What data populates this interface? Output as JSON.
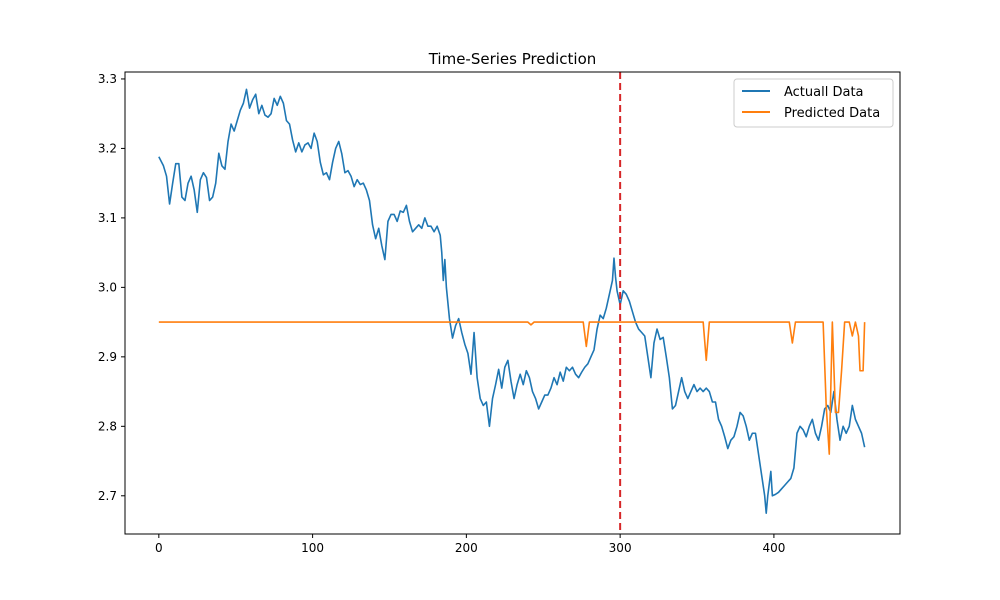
{
  "chart_data": {
    "type": "line",
    "title": "Time-Series Prediction",
    "xlabel": "",
    "ylabel": "",
    "xlim": [
      -22,
      482
    ],
    "ylim": [
      2.645,
      3.31
    ],
    "x_ticks": [
      0,
      100,
      200,
      300,
      400
    ],
    "y_ticks": [
      2.7,
      2.8,
      2.9,
      3.0,
      3.1,
      3.2,
      3.3
    ],
    "grid": false,
    "legend_position": "top-right",
    "vertical_line": {
      "x": 300,
      "color": "#d62728",
      "style": "dashed"
    },
    "series": [
      {
        "name": "Actuall Data",
        "color": "#1f77b4",
        "points": [
          [
            0,
            3.188
          ],
          [
            3,
            3.175
          ],
          [
            5,
            3.16
          ],
          [
            7,
            3.12
          ],
          [
            9,
            3.15
          ],
          [
            11,
            3.178
          ],
          [
            13,
            3.178
          ],
          [
            15,
            3.13
          ],
          [
            17,
            3.125
          ],
          [
            19,
            3.15
          ],
          [
            21,
            3.16
          ],
          [
            23,
            3.14
          ],
          [
            25,
            3.108
          ],
          [
            27,
            3.155
          ],
          [
            29,
            3.165
          ],
          [
            31,
            3.158
          ],
          [
            33,
            3.125
          ],
          [
            35,
            3.13
          ],
          [
            37,
            3.15
          ],
          [
            39,
            3.193
          ],
          [
            41,
            3.175
          ],
          [
            43,
            3.17
          ],
          [
            45,
            3.21
          ],
          [
            47,
            3.235
          ],
          [
            49,
            3.225
          ],
          [
            51,
            3.24
          ],
          [
            53,
            3.255
          ],
          [
            55,
            3.265
          ],
          [
            57,
            3.285
          ],
          [
            59,
            3.258
          ],
          [
            61,
            3.27
          ],
          [
            63,
            3.278
          ],
          [
            65,
            3.25
          ],
          [
            67,
            3.262
          ],
          [
            69,
            3.248
          ],
          [
            71,
            3.245
          ],
          [
            73,
            3.25
          ],
          [
            75,
            3.272
          ],
          [
            77,
            3.262
          ],
          [
            79,
            3.275
          ],
          [
            81,
            3.265
          ],
          [
            83,
            3.24
          ],
          [
            85,
            3.235
          ],
          [
            87,
            3.212
          ],
          [
            89,
            3.195
          ],
          [
            91,
            3.208
          ],
          [
            93,
            3.195
          ],
          [
            95,
            3.205
          ],
          [
            97,
            3.208
          ],
          [
            99,
            3.2
          ],
          [
            101,
            3.222
          ],
          [
            103,
            3.21
          ],
          [
            105,
            3.18
          ],
          [
            107,
            3.162
          ],
          [
            109,
            3.165
          ],
          [
            111,
            3.155
          ],
          [
            113,
            3.18
          ],
          [
            115,
            3.2
          ],
          [
            117,
            3.21
          ],
          [
            119,
            3.192
          ],
          [
            121,
            3.165
          ],
          [
            123,
            3.168
          ],
          [
            125,
            3.16
          ],
          [
            127,
            3.145
          ],
          [
            129,
            3.155
          ],
          [
            131,
            3.148
          ],
          [
            133,
            3.15
          ],
          [
            135,
            3.14
          ],
          [
            137,
            3.125
          ],
          [
            139,
            3.09
          ],
          [
            141,
            3.07
          ],
          [
            143,
            3.085
          ],
          [
            145,
            3.06
          ],
          [
            147,
            3.04
          ],
          [
            149,
            3.095
          ],
          [
            151,
            3.105
          ],
          [
            153,
            3.105
          ],
          [
            155,
            3.095
          ],
          [
            157,
            3.11
          ],
          [
            159,
            3.108
          ],
          [
            161,
            3.118
          ],
          [
            163,
            3.095
          ],
          [
            165,
            3.08
          ],
          [
            167,
            3.085
          ],
          [
            169,
            3.09
          ],
          [
            171,
            3.085
          ],
          [
            173,
            3.1
          ],
          [
            175,
            3.088
          ],
          [
            177,
            3.088
          ],
          [
            179,
            3.08
          ],
          [
            181,
            3.088
          ],
          [
            183,
            3.075
          ],
          [
            184,
            3.05
          ],
          [
            185,
            3.01
          ],
          [
            186,
            3.04
          ],
          [
            187,
            3.0
          ],
          [
            189,
            2.955
          ],
          [
            191,
            2.927
          ],
          [
            193,
            2.945
          ],
          [
            195,
            2.955
          ],
          [
            197,
            2.935
          ],
          [
            199,
            2.918
          ],
          [
            201,
            2.905
          ],
          [
            203,
            2.875
          ],
          [
            205,
            2.935
          ],
          [
            207,
            2.87
          ],
          [
            209,
            2.84
          ],
          [
            211,
            2.83
          ],
          [
            213,
            2.835
          ],
          [
            215,
            2.8
          ],
          [
            217,
            2.84
          ],
          [
            219,
            2.86
          ],
          [
            221,
            2.882
          ],
          [
            223,
            2.855
          ],
          [
            225,
            2.885
          ],
          [
            227,
            2.895
          ],
          [
            229,
            2.865
          ],
          [
            231,
            2.84
          ],
          [
            233,
            2.86
          ],
          [
            235,
            2.875
          ],
          [
            237,
            2.86
          ],
          [
            239,
            2.88
          ],
          [
            241,
            2.87
          ],
          [
            243,
            2.85
          ],
          [
            245,
            2.84
          ],
          [
            247,
            2.825
          ],
          [
            249,
            2.835
          ],
          [
            251,
            2.845
          ],
          [
            253,
            2.845
          ],
          [
            255,
            2.855
          ],
          [
            257,
            2.87
          ],
          [
            259,
            2.86
          ],
          [
            261,
            2.878
          ],
          [
            263,
            2.865
          ],
          [
            265,
            2.885
          ],
          [
            267,
            2.88
          ],
          [
            269,
            2.885
          ],
          [
            271,
            2.875
          ],
          [
            273,
            2.87
          ],
          [
            275,
            2.878
          ],
          [
            277,
            2.885
          ],
          [
            279,
            2.89
          ],
          [
            281,
            2.9
          ],
          [
            283,
            2.91
          ],
          [
            285,
            2.94
          ],
          [
            287,
            2.96
          ],
          [
            289,
            2.955
          ],
          [
            291,
            2.97
          ],
          [
            293,
            2.99
          ],
          [
            295,
            3.01
          ],
          [
            296,
            3.042
          ],
          [
            297,
            3.015
          ],
          [
            298,
            2.995
          ],
          [
            300,
            2.975
          ],
          [
            302,
            2.995
          ],
          [
            304,
            2.99
          ],
          [
            306,
            2.98
          ],
          [
            308,
            2.965
          ],
          [
            310,
            2.95
          ],
          [
            312,
            2.94
          ],
          [
            314,
            2.935
          ],
          [
            316,
            2.93
          ],
          [
            318,
            2.9
          ],
          [
            320,
            2.87
          ],
          [
            322,
            2.92
          ],
          [
            324,
            2.94
          ],
          [
            326,
            2.925
          ],
          [
            328,
            2.928
          ],
          [
            330,
            2.9
          ],
          [
            332,
            2.87
          ],
          [
            334,
            2.825
          ],
          [
            336,
            2.83
          ],
          [
            338,
            2.85
          ],
          [
            340,
            2.87
          ],
          [
            342,
            2.85
          ],
          [
            344,
            2.84
          ],
          [
            346,
            2.85
          ],
          [
            348,
            2.86
          ],
          [
            350,
            2.85
          ],
          [
            352,
            2.855
          ],
          [
            354,
            2.85
          ],
          [
            356,
            2.855
          ],
          [
            358,
            2.85
          ],
          [
            360,
            2.835
          ],
          [
            362,
            2.835
          ],
          [
            364,
            2.81
          ],
          [
            366,
            2.8
          ],
          [
            368,
            2.785
          ],
          [
            370,
            2.768
          ],
          [
            372,
            2.78
          ],
          [
            374,
            2.785
          ],
          [
            376,
            2.8
          ],
          [
            378,
            2.82
          ],
          [
            380,
            2.815
          ],
          [
            382,
            2.8
          ],
          [
            384,
            2.78
          ],
          [
            386,
            2.79
          ],
          [
            388,
            2.79
          ],
          [
            390,
            2.76
          ],
          [
            392,
            2.73
          ],
          [
            394,
            2.7
          ],
          [
            395,
            2.675
          ],
          [
            396,
            2.7
          ],
          [
            398,
            2.735
          ],
          [
            399,
            2.7
          ],
          [
            401,
            2.702
          ],
          [
            403,
            2.705
          ],
          [
            405,
            2.71
          ],
          [
            407,
            2.715
          ],
          [
            409,
            2.72
          ],
          [
            411,
            2.725
          ],
          [
            413,
            2.74
          ],
          [
            415,
            2.79
          ],
          [
            417,
            2.8
          ],
          [
            419,
            2.795
          ],
          [
            421,
            2.785
          ],
          [
            423,
            2.8
          ],
          [
            425,
            2.81
          ],
          [
            427,
            2.79
          ],
          [
            429,
            2.78
          ],
          [
            431,
            2.8
          ],
          [
            433,
            2.825
          ],
          [
            435,
            2.83
          ],
          [
            437,
            2.82
          ],
          [
            439,
            2.85
          ],
          [
            441,
            2.81
          ],
          [
            443,
            2.78
          ],
          [
            445,
            2.8
          ],
          [
            447,
            2.79
          ],
          [
            449,
            2.8
          ],
          [
            451,
            2.83
          ],
          [
            453,
            2.81
          ],
          [
            455,
            2.8
          ],
          [
            457,
            2.79
          ],
          [
            459,
            2.77
          ]
        ]
      },
      {
        "name": "Predicted Data",
        "color": "#ff7f0e",
        "points": [
          [
            0,
            2.95
          ],
          [
            240,
            2.95
          ],
          [
            242,
            2.946
          ],
          [
            244,
            2.95
          ],
          [
            276,
            2.95
          ],
          [
            278,
            2.915
          ],
          [
            280,
            2.95
          ],
          [
            354,
            2.95
          ],
          [
            356,
            2.895
          ],
          [
            358,
            2.95
          ],
          [
            410,
            2.95
          ],
          [
            412,
            2.92
          ],
          [
            414,
            2.95
          ],
          [
            432,
            2.95
          ],
          [
            434,
            2.83
          ],
          [
            436,
            2.76
          ],
          [
            438,
            2.95
          ],
          [
            440,
            2.82
          ],
          [
            442,
            2.82
          ],
          [
            444,
            2.88
          ],
          [
            446,
            2.95
          ],
          [
            449,
            2.95
          ],
          [
            451,
            2.93
          ],
          [
            453,
            2.95
          ],
          [
            455,
            2.93
          ],
          [
            456,
            2.88
          ],
          [
            458,
            2.88
          ],
          [
            459,
            2.95
          ]
        ]
      }
    ]
  }
}
